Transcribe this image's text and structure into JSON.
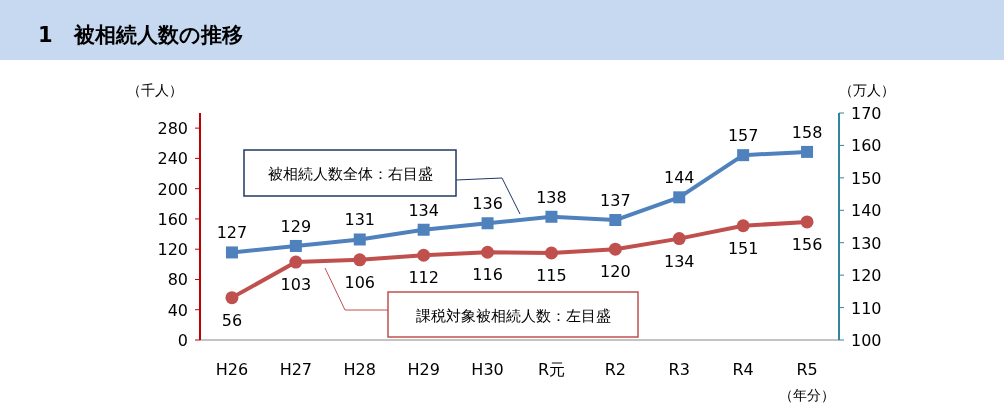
{
  "chart_data": {
    "type": "line",
    "title": "1　被相続人数の推移",
    "categories": [
      "H26",
      "H27",
      "H28",
      "H29",
      "H30",
      "R元",
      "R2",
      "R3",
      "R4",
      "R5"
    ],
    "ylabel": "（千人）",
    "y2label": "（万人）",
    "xlabel": "（年分）",
    "ylim": [
      0,
      300
    ],
    "yticks": [
      0,
      40,
      80,
      120,
      160,
      200,
      240,
      280
    ],
    "y2lim": [
      100,
      170
    ],
    "y2ticks": [
      100,
      110,
      120,
      130,
      140,
      150,
      160,
      170
    ],
    "grid": false,
    "data_labels": true,
    "series": [
      {
        "name": "被相続人数全体：右目盛",
        "color": "#4f81bd",
        "axis": "y2",
        "marker": "square",
        "values": [
          127,
          129,
          131,
          134,
          136,
          138,
          137,
          144,
          157,
          158
        ]
      },
      {
        "name": "課税対象被相続人数：左目盛",
        "color": "#c0504d",
        "axis": "y",
        "marker": "circle",
        "values": [
          56,
          103,
          106,
          112,
          116,
          115,
          120,
          134,
          151,
          156
        ]
      }
    ]
  }
}
